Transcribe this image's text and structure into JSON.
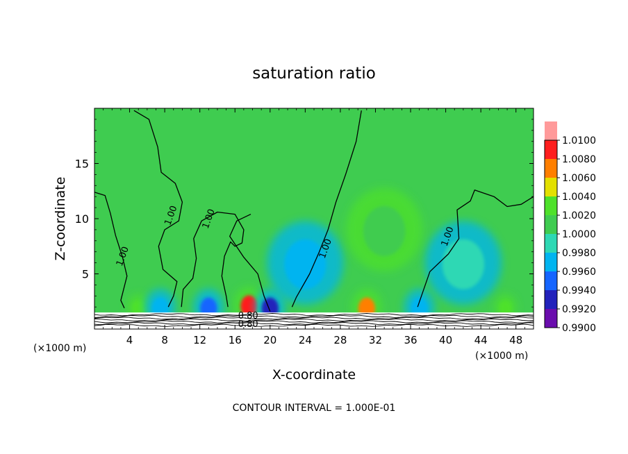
{
  "chart_data": {
    "type": "heatmap",
    "title": "saturation ratio",
    "xlabel": "X-coordinate",
    "ylabel": "Z-coordinate",
    "x_unit_left": "(×1000 m)",
    "x_unit_right": "(×1000 m)",
    "footer": "CONTOUR INTERVAL = 1.000E-01",
    "xlim": [
      0,
      50
    ],
    "ylim": [
      0,
      20
    ],
    "x_ticks": [
      4,
      8,
      12,
      16,
      20,
      24,
      28,
      32,
      36,
      40,
      44,
      48
    ],
    "x_tick_labels": [
      "4",
      "8",
      "12",
      "16",
      "20",
      "24",
      "28",
      "32",
      "36",
      "40",
      "44",
      "48"
    ],
    "y_ticks": [
      5,
      10,
      15
    ],
    "y_tick_labels": [
      "5",
      "10",
      "15"
    ],
    "colorbar": {
      "levels": [
        0.99,
        0.992,
        0.994,
        0.996,
        0.998,
        1.0,
        1.002,
        1.004,
        1.006,
        1.008,
        1.01
      ],
      "labels": [
        "0.9900",
        "0.9920",
        "0.9940",
        "0.9960",
        "0.9980",
        "1.0000",
        "1.0020",
        "1.0040",
        "1.0060",
        "1.0080",
        "1.0100"
      ],
      "colors": [
        "#6a0dad",
        "#2222bb",
        "#1565ff",
        "#00b4f0",
        "#2ed8b4",
        "#3fcc50",
        "#4ee12a",
        "#e3e000",
        "#ff7f00",
        "#ff1e1e",
        "#ff9a9a"
      ]
    },
    "background_value": 1.0005,
    "features": [
      {
        "x": 5,
        "z": 2.0,
        "value": 1.003,
        "kind": "maximum"
      },
      {
        "x": 17.6,
        "z": 2.2,
        "value": 1.008,
        "kind": "maximum"
      },
      {
        "x": 31,
        "z": 2.0,
        "value": 1.007,
        "kind": "maximum"
      },
      {
        "x": 46.8,
        "z": 2.0,
        "value": 1.003,
        "kind": "maximum"
      },
      {
        "x": 20,
        "z": 2.0,
        "value": 0.993,
        "kind": "minimum"
      },
      {
        "x": 13,
        "z": 2.0,
        "value": 0.995,
        "kind": "minimum"
      },
      {
        "x": 7.5,
        "z": 2.0,
        "value": 0.996,
        "kind": "minimum"
      },
      {
        "x": 24,
        "z": 6.0,
        "value": 0.997,
        "kind": "minimum"
      },
      {
        "x": 37,
        "z": 2.0,
        "value": 0.996,
        "kind": "minimum"
      },
      {
        "x": 42,
        "z": 6.0,
        "value": 0.998,
        "kind": "minimum"
      },
      {
        "x": 33,
        "z": 9.0,
        "value": 1.0015,
        "kind": "maximum"
      }
    ],
    "contours": [
      {
        "label": "1.00",
        "label_at": [
          3.5,
          6.5
        ],
        "points": [
          [
            0,
            12.4
          ],
          [
            1.2,
            12.1
          ],
          [
            1.8,
            10.5
          ],
          [
            2.4,
            8.5
          ],
          [
            3.2,
            6.5
          ],
          [
            3.7,
            4.8
          ],
          [
            3.0,
            2.6
          ],
          [
            3.4,
            1.9
          ]
        ]
      },
      {
        "label": "1.00",
        "label_at": [
          9,
          10.2
        ],
        "points": [
          [
            4.5,
            19.8
          ],
          [
            6.2,
            19.0
          ],
          [
            7.2,
            16.5
          ],
          [
            7.6,
            14.2
          ],
          [
            9.2,
            13.2
          ],
          [
            10.0,
            11.5
          ],
          [
            9.6,
            9.8
          ],
          [
            8.0,
            9.0
          ],
          [
            7.3,
            7.5
          ],
          [
            7.8,
            5.4
          ],
          [
            9.4,
            4.3
          ],
          [
            9.0,
            3.0
          ],
          [
            8.4,
            2.0
          ]
        ]
      },
      {
        "label": "1.00",
        "label_at": [
          13.3,
          9.9
        ],
        "points": [
          [
            9.9,
            2.0
          ],
          [
            10.1,
            3.6
          ],
          [
            11.2,
            4.6
          ],
          [
            11.6,
            6.4
          ],
          [
            11.3,
            8.2
          ],
          [
            12.2,
            9.8
          ],
          [
            14.0,
            10.6
          ],
          [
            16.0,
            10.4
          ],
          [
            17.0,
            9.0
          ],
          [
            16.8,
            7.8
          ],
          [
            16.0,
            7.5
          ],
          [
            15.5,
            7.9
          ],
          [
            14.8,
            6.6
          ],
          [
            14.5,
            4.8
          ],
          [
            15.0,
            3.0
          ],
          [
            15.2,
            2.0
          ]
        ]
      },
      {
        "label": "1.00",
        "label_at": [
          26.6,
          7.2
        ],
        "points": [
          [
            30.4,
            19.8
          ],
          [
            29.8,
            17.0
          ],
          [
            28.6,
            14.0
          ],
          [
            27.5,
            11.5
          ],
          [
            26.6,
            9.0
          ],
          [
            25.6,
            7.0
          ],
          [
            24.5,
            5.0
          ],
          [
            23.0,
            2.9
          ],
          [
            22.5,
            2.0
          ]
        ]
      },
      {
        "label": "1.00",
        "label_at": [
          40.5,
          8.3
        ],
        "points": [
          [
            36.8,
            2.0
          ],
          [
            38.2,
            5.2
          ],
          [
            40.3,
            6.8
          ],
          [
            41.5,
            8.2
          ],
          [
            41.3,
            10.8
          ],
          [
            42.8,
            11.6
          ],
          [
            43.3,
            12.6
          ],
          [
            45.5,
            12.0
          ],
          [
            47.0,
            11.1
          ],
          [
            48.6,
            11.3
          ],
          [
            50,
            12.0
          ]
        ]
      },
      {
        "label": "",
        "label_at": null,
        "points": [
          [
            20.0,
            1.6
          ],
          [
            19.3,
            3.0
          ],
          [
            18.6,
            5.0
          ],
          [
            17.0,
            6.5
          ],
          [
            15.4,
            8.4
          ],
          [
            16.2,
            9.8
          ],
          [
            17.8,
            10.4
          ]
        ]
      }
    ],
    "ground_label_top": "0.80",
    "ground_label_bottom": "0.80"
  }
}
